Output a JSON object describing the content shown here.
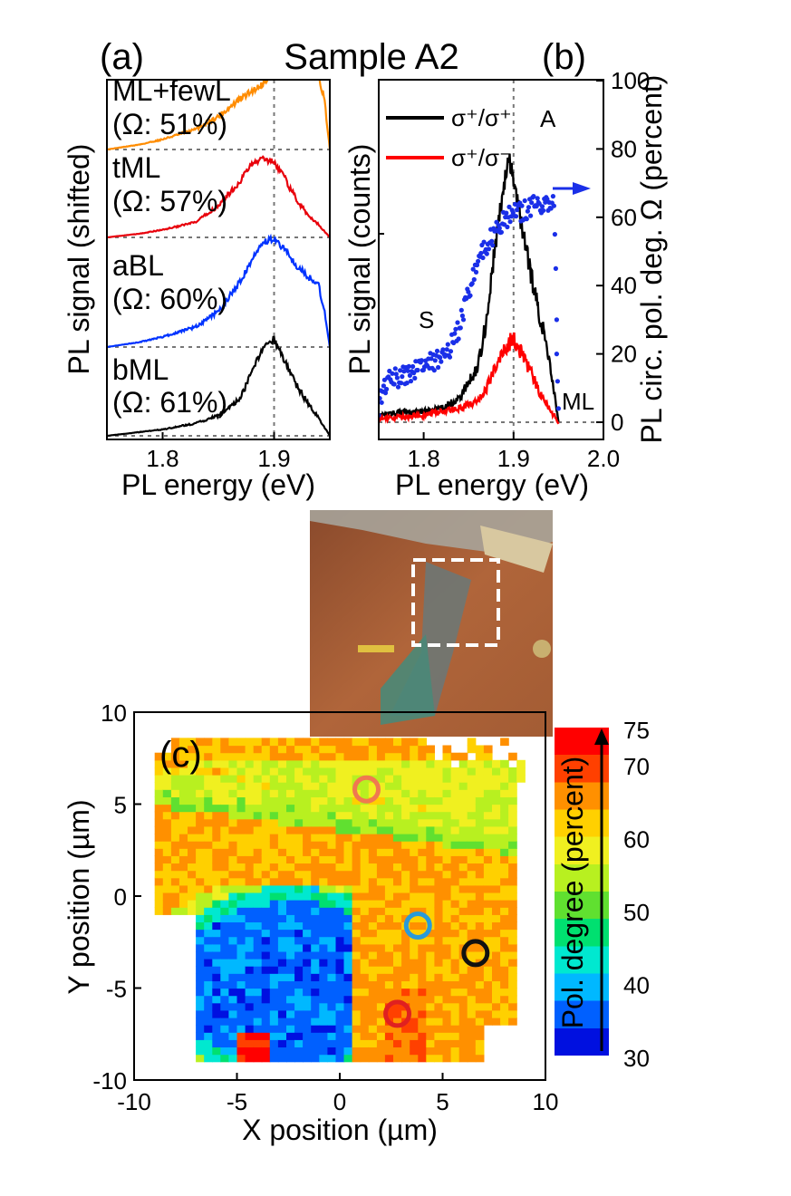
{
  "figure": {
    "title": "Sample A2",
    "panel_a_label": "(a)",
    "panel_b_label": "(b)",
    "panel_c_label": "(c)"
  },
  "chart_data": [
    {
      "id": "a",
      "type": "line",
      "xlabel": "PL energy (eV)",
      "ylabel": "PL signal (shifted)",
      "xlim": [
        1.75,
        1.95
      ],
      "x_ticks": [
        "1.8",
        "1.9"
      ],
      "x_tick_values": [
        1.8,
        1.9
      ],
      "reference_line_x": 1.9,
      "series": [
        {
          "name": "ML+fewL",
          "note": "(Ω: 51%)",
          "color": "#ff8c00",
          "peak": 1.9,
          "baseline_offset": 3.0,
          "x": [
            1.75,
            1.78,
            1.8,
            1.83,
            1.85,
            1.87,
            1.89,
            1.9,
            1.91,
            1.93,
            1.94,
            1.945,
            1.95
          ],
          "values": [
            0.0,
            0.04,
            0.08,
            0.16,
            0.26,
            0.4,
            0.52,
            0.62,
            0.58,
            0.6,
            0.58,
            0.4,
            0.0
          ]
        },
        {
          "name": "tML",
          "note": "(Ω: 57%)",
          "color": "#e8000b",
          "peak": 1.9,
          "baseline_offset": 2.0,
          "x": [
            1.75,
            1.78,
            1.8,
            1.83,
            1.85,
            1.87,
            1.88,
            1.89,
            1.9,
            1.91,
            1.92,
            1.93,
            1.94,
            1.95
          ],
          "values": [
            0.0,
            0.03,
            0.06,
            0.12,
            0.25,
            0.45,
            0.58,
            0.62,
            0.6,
            0.46,
            0.3,
            0.18,
            0.1,
            0.0
          ]
        },
        {
          "name": "aBL",
          "note": "(Ω: 60%)",
          "color": "#0033ff",
          "peak": 1.9,
          "baseline_offset": 1.0,
          "x": [
            1.75,
            1.78,
            1.8,
            1.83,
            1.85,
            1.87,
            1.88,
            1.89,
            1.9,
            1.91,
            1.92,
            1.93,
            1.94,
            1.945,
            1.95
          ],
          "values": [
            0.0,
            0.04,
            0.08,
            0.16,
            0.28,
            0.52,
            0.68,
            0.82,
            0.86,
            0.76,
            0.64,
            0.56,
            0.48,
            0.3,
            0.0
          ]
        },
        {
          "name": "bML",
          "note": "(Ω: 61%)",
          "color": "#000000",
          "peak": 1.9,
          "baseline_offset": 0.0,
          "x": [
            1.75,
            1.78,
            1.8,
            1.83,
            1.85,
            1.87,
            1.88,
            1.89,
            1.9,
            1.91,
            1.92,
            1.93,
            1.94,
            1.95
          ],
          "values": [
            0.0,
            0.03,
            0.05,
            0.1,
            0.16,
            0.3,
            0.5,
            0.7,
            0.76,
            0.58,
            0.4,
            0.26,
            0.14,
            0.0
          ]
        }
      ]
    },
    {
      "id": "b",
      "type": "line",
      "xlabel": "PL energy (eV)",
      "ylabel_left": "PL signal (counts)",
      "ylabel_right": "PL circ. pol. deg. Ω (percent)",
      "xlim": [
        1.75,
        2.0
      ],
      "x_ticks": [
        "1.8",
        "1.9",
        "2.0"
      ],
      "x_tick_values": [
        1.8,
        1.9,
        2.0
      ],
      "ylim_right": [
        -5,
        100
      ],
      "y_ticks_right": [
        "0",
        "20",
        "40",
        "60",
        "80",
        "100"
      ],
      "y_tick_values_right": [
        0,
        20,
        40,
        60,
        80,
        100
      ],
      "reference_line_x": 1.9,
      "annotations": [
        "A",
        "S",
        "ML"
      ],
      "series": [
        {
          "name": "σ⁺/σ⁺",
          "color": "#000000",
          "axis": "left",
          "x": [
            1.75,
            1.78,
            1.8,
            1.82,
            1.84,
            1.86,
            1.87,
            1.88,
            1.89,
            1.895,
            1.9,
            1.91,
            1.92,
            1.93,
            1.94,
            1.95
          ],
          "values": [
            0.02,
            0.03,
            0.03,
            0.04,
            0.07,
            0.16,
            0.3,
            0.52,
            0.7,
            0.76,
            0.7,
            0.56,
            0.42,
            0.3,
            0.18,
            0.0
          ]
        },
        {
          "name": "σ⁺/σ⁻",
          "color": "#ff0000",
          "axis": "left",
          "x": [
            1.75,
            1.8,
            1.84,
            1.86,
            1.87,
            1.88,
            1.89,
            1.9,
            1.91,
            1.92,
            1.93,
            1.94,
            1.95
          ],
          "values": [
            0.01,
            0.02,
            0.04,
            0.06,
            0.1,
            0.16,
            0.22,
            0.24,
            0.2,
            0.14,
            0.08,
            0.04,
            0.0
          ]
        },
        {
          "name": "Ω",
          "color": "#1a2fe8",
          "axis": "right",
          "marker": "dots",
          "x": [
            1.75,
            1.76,
            1.78,
            1.8,
            1.82,
            1.83,
            1.84,
            1.85,
            1.86,
            1.87,
            1.88,
            1.89,
            1.9,
            1.91,
            1.92,
            1.93,
            1.94,
            1.945
          ],
          "values": [
            5,
            12,
            14,
            17,
            19,
            22,
            28,
            38,
            47,
            52,
            56,
            59,
            61,
            62,
            63,
            64,
            65,
            64
          ]
        }
      ]
    },
    {
      "id": "c",
      "type": "heatmap",
      "xlabel": "X position (µm)",
      "ylabel": "Y position (µm)",
      "xlim": [
        -10,
        10
      ],
      "ylim": [
        -10,
        10
      ],
      "x_ticks": [
        "-10",
        "-5",
        "0",
        "5",
        "10"
      ],
      "x_tick_values": [
        -10,
        -5,
        0,
        5,
        10
      ],
      "y_ticks": [
        "-10",
        "-5",
        "0",
        "5",
        "10"
      ],
      "y_tick_values": [
        -10,
        -5,
        0,
        5,
        10
      ],
      "colorbar": {
        "label": "Pol. degree (percent)",
        "range": [
          30,
          75
        ],
        "ticks": [
          "30",
          "40",
          "50",
          "60",
          "70",
          "75"
        ],
        "tick_values": [
          30,
          40,
          50,
          60,
          70,
          75
        ],
        "colors": [
          "#0010e0",
          "#0060ff",
          "#00b8ff",
          "#00e8d0",
          "#00e070",
          "#60e030",
          "#b8f020",
          "#f0f020",
          "#ffd000",
          "#ff9000",
          "#ff4000",
          "#ff0000"
        ]
      },
      "markers": [
        {
          "x": 1.3,
          "y": 5.8,
          "color": "#f07850"
        },
        {
          "x": 3.8,
          "y": -1.6,
          "color": "#2a9ad8"
        },
        {
          "x": 6.6,
          "y": -3.1,
          "color": "#111111"
        },
        {
          "x": 2.8,
          "y": -6.4,
          "color": "#e02020"
        }
      ]
    }
  ]
}
